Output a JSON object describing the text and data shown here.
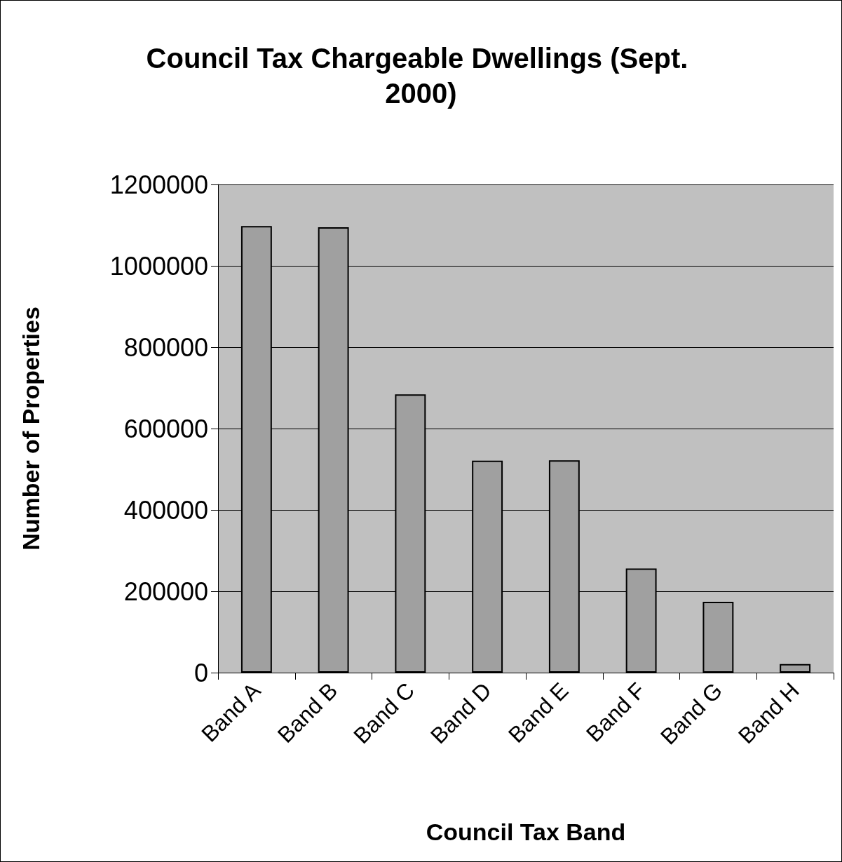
{
  "chart_data": {
    "type": "bar",
    "title": "Council Tax Chargeable Dwellings (Sept. 2000)",
    "xlabel": "Council Tax Band",
    "ylabel": "Number of Properties",
    "categories": [
      "Band A",
      "Band B",
      "Band C",
      "Band D",
      "Band E",
      "Band F",
      "Band G",
      "Band H"
    ],
    "values": [
      1098000,
      1095000,
      684000,
      521000,
      522000,
      256000,
      174000,
      21000
    ],
    "color": "#a0a0a0",
    "ylim": [
      0,
      1200000
    ],
    "yticks": [
      0,
      200000,
      400000,
      600000,
      800000,
      1000000,
      1200000
    ],
    "grid": "y"
  }
}
